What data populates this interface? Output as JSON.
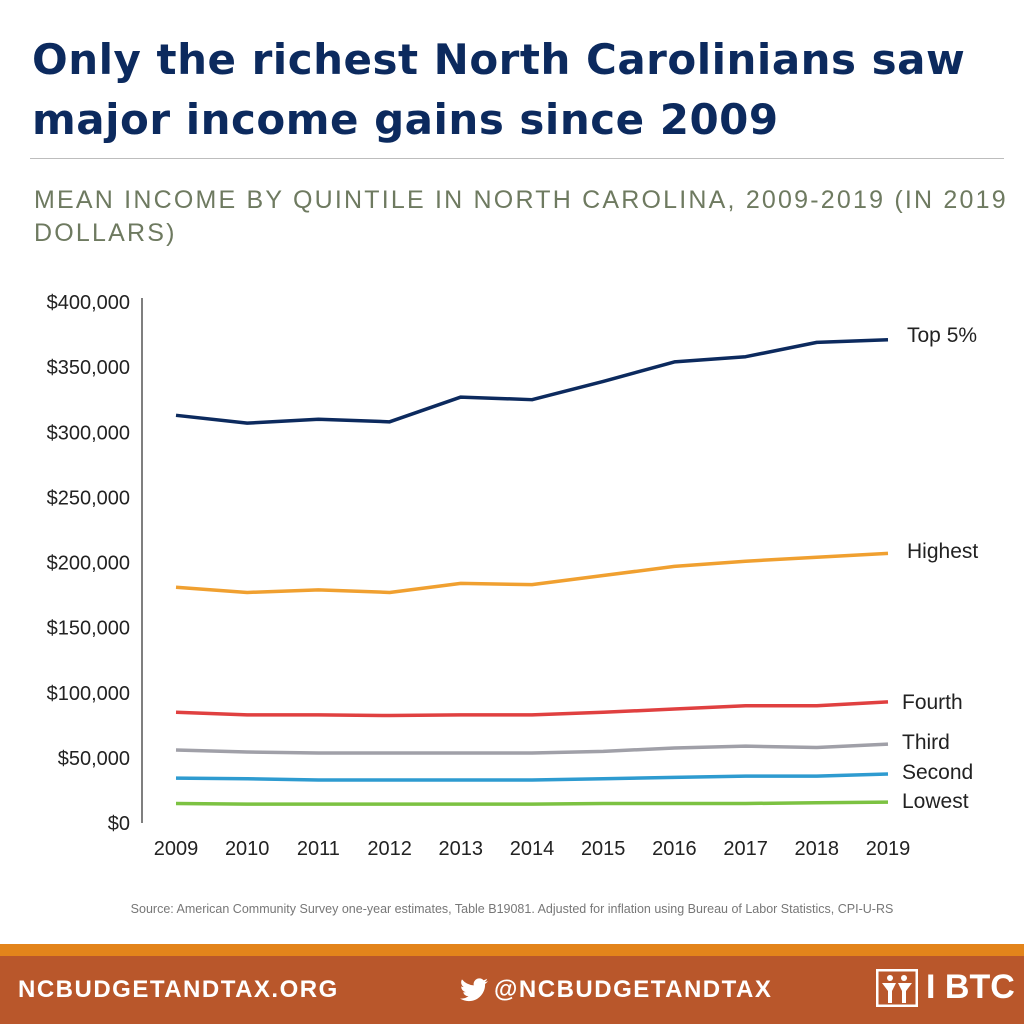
{
  "title": "Only the richest North Carolinians saw major income gains since 2009",
  "chart_data": {
    "type": "line",
    "title": "MEAN INCOME BY QUINTILE IN NORTH CAROLINA, 2009-2019 (IN 2019 DOLLARS)",
    "x": [
      "2009",
      "2010",
      "2011",
      "2012",
      "2013",
      "2014",
      "2015",
      "2016",
      "2017",
      "2018",
      "2019"
    ],
    "ylim": [
      0,
      400000
    ],
    "yticks": [
      0,
      50000,
      100000,
      150000,
      200000,
      250000,
      300000,
      350000,
      400000
    ],
    "ytick_labels": [
      "$0",
      "$50,000",
      "$100,000",
      "$150,000",
      "$200,000",
      "$250,000",
      "$300,000",
      "$350,000",
      "$400,000"
    ],
    "grid": false,
    "legend": "direct labels at right end of lines",
    "series": [
      {
        "name": "Top 5%",
        "color": "#0c2a5e",
        "values": [
          313000,
          307000,
          310000,
          308000,
          327000,
          325000,
          339000,
          354000,
          358000,
          369000,
          371000
        ]
      },
      {
        "name": "Highest",
        "color": "#f0a030",
        "values": [
          181000,
          177000,
          179000,
          177000,
          184000,
          183000,
          190000,
          197000,
          201000,
          204000,
          207000
        ]
      },
      {
        "name": "Fourth",
        "color": "#e04040",
        "values": [
          85000,
          83000,
          83000,
          82500,
          83000,
          83000,
          85000,
          87500,
          90000,
          90000,
          93000
        ]
      },
      {
        "name": "Third",
        "color": "#a0a0a8",
        "values": [
          56000,
          54500,
          53700,
          53700,
          53700,
          53700,
          55000,
          57600,
          59000,
          58000,
          60600
        ]
      },
      {
        "name": "Second",
        "color": "#2e9bd0",
        "values": [
          34500,
          34000,
          33000,
          33000,
          33000,
          33000,
          34000,
          35000,
          36000,
          36000,
          37600
        ]
      },
      {
        "name": "Lowest",
        "color": "#7cc242",
        "values": [
          15000,
          14500,
          14500,
          14500,
          14500,
          14500,
          15000,
          15000,
          15000,
          15500,
          16000
        ]
      }
    ]
  },
  "source": "Source: American Community Survey one-year estimates, Table B19081. Adjusted for inflation using Bureau of Labor Statistics, CPI-U-RS",
  "footer": {
    "website": "NCBUDGETANDTAX.ORG",
    "twitter": "@NCBUDGETANDTAX",
    "twitter_icon": "twitter-bird-icon",
    "logo": "BTC",
    "logo_text": "I BTC"
  }
}
